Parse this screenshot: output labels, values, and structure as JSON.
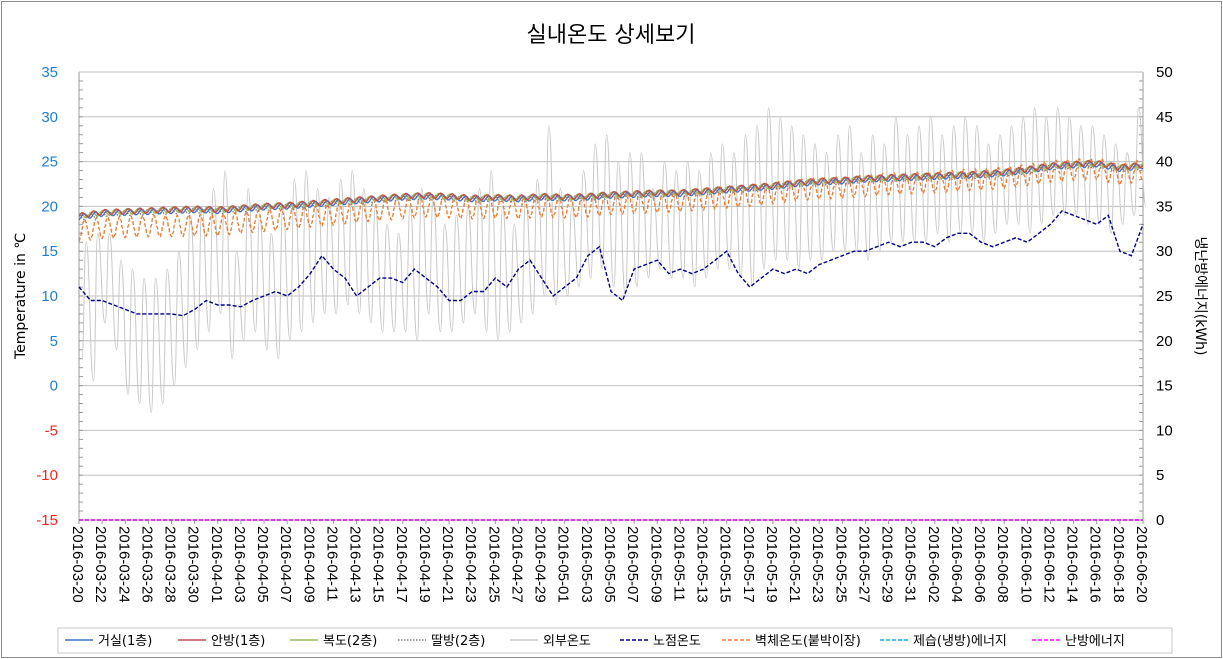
{
  "chart_data": {
    "type": "line",
    "title": "실내온도 상세보기",
    "ylabel": "Temperature in ℃",
    "y2label": "냉난방에너지(kWh)",
    "ylim": [
      -15,
      35
    ],
    "y2lim": [
      0,
      50
    ],
    "yticks": [
      35,
      30,
      25,
      20,
      15,
      10,
      5,
      0,
      -5,
      -10,
      -15
    ],
    "y2ticks": [
      50,
      45,
      40,
      35,
      30,
      25,
      20,
      15,
      10,
      5,
      0
    ],
    "grid": true,
    "legend_position": "bottom",
    "x_start": "2016-03-20",
    "x_end": "2016-06-20",
    "xticks": [
      "2016-03-20",
      "2016-03-22",
      "2016-03-24",
      "2016-03-26",
      "2016-03-28",
      "2016-03-30",
      "2016-04-01",
      "2016-04-03",
      "2016-04-05",
      "2016-04-07",
      "2016-04-09",
      "2016-04-11",
      "2016-04-13",
      "2016-04-15",
      "2016-04-17",
      "2016-04-19",
      "2016-04-21",
      "2016-04-23",
      "2016-04-25",
      "2016-04-27",
      "2016-04-29",
      "2016-05-01",
      "2016-05-03",
      "2016-05-05",
      "2016-05-07",
      "2016-05-09",
      "2016-05-11",
      "2016-05-13",
      "2016-05-15",
      "2016-05-17",
      "2016-05-19",
      "2016-05-21",
      "2016-05-23",
      "2016-05-25",
      "2016-05-27",
      "2016-05-29",
      "2016-05-31",
      "2016-06-02",
      "2016-06-04",
      "2016-06-06",
      "2016-06-08",
      "2016-06-10",
      "2016-06-12",
      "2016-06-14",
      "2016-06-16",
      "2016-06-18",
      "2016-06-20"
    ],
    "colors": {
      "axis_pos": "#1f7fd0",
      "axis_neg": "#ff2020",
      "grid": "#bfbfbf"
    },
    "indoor_daily_swing": 0.3,
    "living_room_every2days": [
      18.8,
      19.2,
      19.3,
      19.4,
      19.5,
      19.6,
      19.5,
      19.7,
      19.9,
      20.0,
      20.2,
      20.4,
      20.6,
      20.8,
      21.0,
      21.1,
      21.0,
      20.8,
      20.9,
      20.8,
      21.0,
      20.9,
      21.0,
      21.2,
      21.3,
      21.4,
      21.4,
      21.6,
      21.8,
      22.0,
      22.2,
      22.5,
      22.7,
      22.8,
      23.0,
      23.1,
      23.2,
      23.3,
      23.4,
      23.5,
      23.7,
      24.0,
      24.4,
      24.6,
      24.7,
      24.2,
      24.5
    ],
    "series": [
      {
        "name": "거실(1층)",
        "color": "#4472c4",
        "style": "solid",
        "kind": "indoor",
        "offset": 0
      },
      {
        "name": "안방(1층)",
        "color": "#c0504d",
        "style": "solid",
        "kind": "indoor",
        "offset": 0.15
      },
      {
        "name": "복도(2층)",
        "color": "#9bbb59",
        "style": "solid",
        "kind": "indoor",
        "offset": 0.1
      },
      {
        "name": "딸방(2층)",
        "color": "#7f7f7f",
        "style": "dotted",
        "kind": "indoor",
        "offset": -0.05
      },
      {
        "name": "외부온도",
        "color": "#c8c8c8",
        "style": "solid",
        "kind": "outdoor",
        "daily_max": [
          16,
          17,
          17,
          14,
          13,
          12,
          12,
          13,
          15,
          19,
          20,
          22,
          24,
          15,
          22,
          19,
          17,
          20,
          23,
          24,
          22,
          21,
          23,
          24,
          22,
          20,
          18,
          17,
          20,
          22,
          21,
          18,
          19,
          20,
          22,
          24,
          20,
          18,
          21,
          23,
          29,
          22,
          20,
          24,
          27,
          28,
          25,
          26,
          26,
          22,
          25,
          24,
          25,
          24,
          26,
          27,
          26,
          28,
          29,
          31,
          30,
          29,
          28,
          27,
          26,
          28,
          29,
          26,
          28,
          27,
          30,
          28,
          29,
          30,
          28,
          29,
          30,
          29,
          27,
          28,
          29,
          30,
          31,
          30,
          31,
          30,
          29,
          29,
          28,
          27,
          26,
          31,
          31
        ],
        "daily_min": [
          3,
          0.5,
          7,
          4,
          -1,
          -2,
          -3,
          -2,
          0,
          2,
          4,
          6,
          8,
          3,
          5,
          6,
          4,
          3,
          5,
          6,
          7,
          8,
          8,
          9,
          8,
          7,
          6,
          6,
          6,
          5,
          8,
          6,
          6,
          7,
          8,
          6,
          5,
          6,
          7,
          8,
          10,
          9,
          10,
          11,
          12,
          13,
          11,
          10,
          11,
          12,
          13,
          12,
          12,
          11,
          12,
          13,
          13,
          12,
          11,
          13,
          14,
          14,
          13,
          14,
          14,
          15,
          15,
          15,
          14,
          15,
          16,
          16,
          16,
          16,
          17,
          16,
          17,
          17,
          16,
          17,
          18,
          18,
          17,
          18,
          19,
          19,
          19,
          18,
          18,
          17,
          18,
          19,
          20
        ]
      },
      {
        "name": "노점온도",
        "color": "#00008b",
        "style": "dashed",
        "kind": "daily",
        "daily": [
          11,
          9.5,
          9.5,
          9,
          8.5,
          8,
          8,
          8,
          8,
          7.8,
          8.5,
          9.5,
          9,
          9,
          8.8,
          9.5,
          10,
          10.5,
          10,
          11,
          12.5,
          14.5,
          13,
          12,
          10,
          11,
          12,
          12,
          11.5,
          13,
          12,
          11,
          9.5,
          9.5,
          10.5,
          10.5,
          12,
          11,
          13,
          14,
          12,
          10,
          11,
          12,
          14.5,
          15.5,
          10.5,
          9.5,
          13,
          13.5,
          14,
          12.5,
          13,
          12.5,
          13,
          14,
          15,
          12.5,
          11,
          12,
          13,
          12.5,
          13,
          12.5,
          13.5,
          14,
          14.5,
          15,
          15,
          15.5,
          16,
          15.5,
          16,
          16,
          15.5,
          16.5,
          17,
          17,
          16,
          15.5,
          16,
          16.5,
          16,
          17,
          18,
          19.5,
          19,
          18.5,
          18,
          19,
          15,
          14.5,
          18
        ]
      },
      {
        "name": "벽체온도(붙박이장)",
        "color": "#ed7d31",
        "style": "dashed",
        "kind": "wall",
        "daily_swing": 1.2,
        "mean_every2days": [
          17.3,
          17.6,
          17.7,
          17.8,
          17.8,
          17.9,
          17.9,
          18.2,
          18.4,
          18.6,
          18.9,
          19.1,
          19.4,
          19.6,
          19.8,
          20.0,
          19.9,
          19.8,
          19.9,
          19.8,
          20.0,
          19.9,
          20.0,
          20.3,
          20.4,
          20.5,
          20.6,
          20.8,
          21.0,
          21.2,
          21.5,
          21.8,
          22.0,
          22.1,
          22.3,
          22.5,
          22.6,
          22.7,
          22.9,
          23.0,
          23.2,
          23.5,
          23.9,
          24.1,
          24.2,
          23.6,
          24.0
        ]
      },
      {
        "name": "제습(냉방)에너지",
        "color": "#00b0f0",
        "style": "dashed",
        "kind": "energy",
        "value_kwh": 0
      },
      {
        "name": "난방에너지",
        "color": "#ff00ff",
        "style": "dashed",
        "kind": "energy",
        "value_kwh": 0
      }
    ]
  }
}
